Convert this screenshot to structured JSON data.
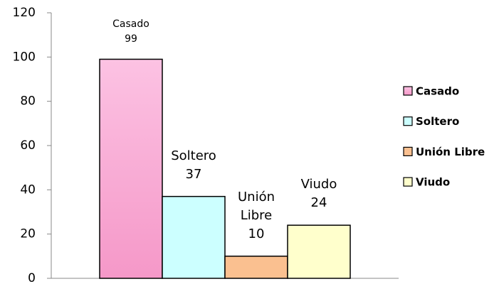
{
  "chart_data": {
    "type": "bar",
    "categories": [
      null
    ],
    "series": [
      {
        "name": "Casado",
        "color": "#f9a8d2",
        "values": [
          99
        ]
      },
      {
        "name": "Soltero",
        "color": "#ccffff",
        "values": [
          37
        ]
      },
      {
        "name": "Unión Libre",
        "color": "#fac090",
        "values": [
          10
        ]
      },
      {
        "name": "Viudo",
        "color": "#ffffcc",
        "values": [
          24
        ]
      }
    ],
    "ylim": [
      0,
      120
    ],
    "yticks": [
      0,
      20,
      40,
      60,
      80,
      100,
      120
    ],
    "grid": false,
    "legend": "right"
  }
}
